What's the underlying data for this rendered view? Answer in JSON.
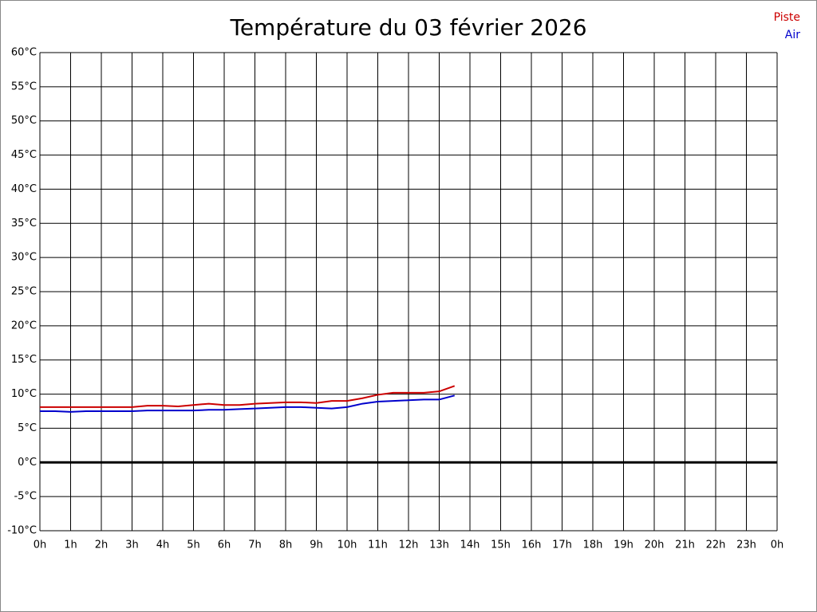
{
  "chart_data": {
    "type": "line",
    "title": "Température du 03 février 2026",
    "x": [
      0,
      0.5,
      1,
      1.5,
      2,
      2.5,
      3,
      3.5,
      4,
      4.5,
      5,
      5.5,
      6,
      6.5,
      7,
      7.5,
      8,
      8.5,
      9,
      9.5,
      10,
      10.5,
      11,
      11.5,
      12,
      12.5,
      13,
      13.5
    ],
    "series": [
      {
        "name": "Piste",
        "color": "#cc0000",
        "values": [
          8.1,
          8.1,
          8.1,
          8.1,
          8.1,
          8.1,
          8.1,
          8.3,
          8.3,
          8.2,
          8.4,
          8.6,
          8.4,
          8.4,
          8.6,
          8.7,
          8.8,
          8.8,
          8.7,
          9.0,
          9.0,
          9.4,
          9.9,
          10.2,
          10.2,
          10.2,
          10.4,
          11.2
        ]
      },
      {
        "name": "Air",
        "color": "#0000cc",
        "values": [
          7.5,
          7.5,
          7.4,
          7.5,
          7.5,
          7.5,
          7.5,
          7.6,
          7.6,
          7.6,
          7.6,
          7.7,
          7.7,
          7.8,
          7.9,
          8.0,
          8.1,
          8.1,
          8.0,
          7.9,
          8.1,
          8.6,
          8.9,
          9.0,
          9.1,
          9.2,
          9.2,
          9.8
        ]
      }
    ],
    "xlim": [
      0,
      24
    ],
    "xticks": [
      {
        "value": 0,
        "label": "0h"
      },
      {
        "value": 1,
        "label": "1h"
      },
      {
        "value": 2,
        "label": "2h"
      },
      {
        "value": 3,
        "label": "3h"
      },
      {
        "value": 4,
        "label": "4h"
      },
      {
        "value": 5,
        "label": "5h"
      },
      {
        "value": 6,
        "label": "6h"
      },
      {
        "value": 7,
        "label": "7h"
      },
      {
        "value": 8,
        "label": "8h"
      },
      {
        "value": 9,
        "label": "9h"
      },
      {
        "value": 10,
        "label": "10h"
      },
      {
        "value": 11,
        "label": "11h"
      },
      {
        "value": 12,
        "label": "12h"
      },
      {
        "value": 13,
        "label": "13h"
      },
      {
        "value": 14,
        "label": "14h"
      },
      {
        "value": 15,
        "label": "15h"
      },
      {
        "value": 16,
        "label": "16h"
      },
      {
        "value": 17,
        "label": "17h"
      },
      {
        "value": 18,
        "label": "18h"
      },
      {
        "value": 19,
        "label": "19h"
      },
      {
        "value": 20,
        "label": "20h"
      },
      {
        "value": 21,
        "label": "21h"
      },
      {
        "value": 22,
        "label": "22h"
      },
      {
        "value": 23,
        "label": "23h"
      },
      {
        "value": 24,
        "label": "0h"
      }
    ],
    "ylim": [
      -10,
      60
    ],
    "yticks": [
      {
        "value": -10,
        "label": "-10°C"
      },
      {
        "value": -5,
        "label": "-5°C"
      },
      {
        "value": 0,
        "label": "0°C"
      },
      {
        "value": 5,
        "label": "5°C"
      },
      {
        "value": 10,
        "label": "10°C"
      },
      {
        "value": 15,
        "label": "15°C"
      },
      {
        "value": 20,
        "label": "20°C"
      },
      {
        "value": 25,
        "label": "25°C"
      },
      {
        "value": 30,
        "label": "30°C"
      },
      {
        "value": 35,
        "label": "35°C"
      },
      {
        "value": 40,
        "label": "40°C"
      },
      {
        "value": 45,
        "label": "45°C"
      },
      {
        "value": 50,
        "label": "50°C"
      },
      {
        "value": 55,
        "label": "55°C"
      },
      {
        "value": 60,
        "label": "60°C"
      }
    ],
    "grid": true,
    "legend": "top-right"
  }
}
